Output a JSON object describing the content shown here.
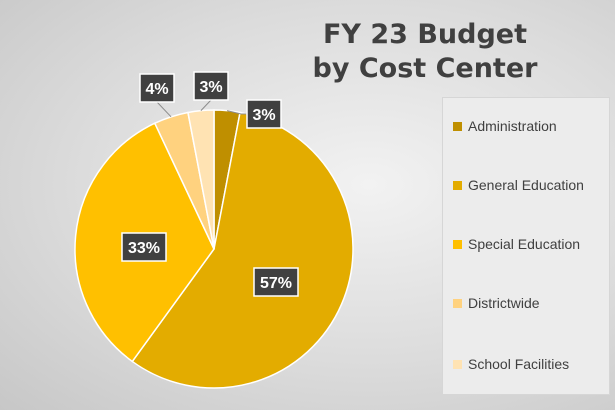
{
  "chart_data": {
    "type": "pie",
    "title_lines": [
      "FY 23 Budget",
      "by Cost Center"
    ],
    "categories": [
      "Administration",
      "General Education",
      "Special Education",
      "Districtwide",
      "School Facilities"
    ],
    "values": [
      3,
      57,
      33,
      4,
      3
    ],
    "labels": [
      "3%",
      "57%",
      "33%",
      "4%",
      "3%"
    ],
    "colors": [
      "#bf8f00",
      "#e3ac00",
      "#ffc000",
      "#ffd27f",
      "#ffe3b3"
    ],
    "legend_position": "right"
  }
}
